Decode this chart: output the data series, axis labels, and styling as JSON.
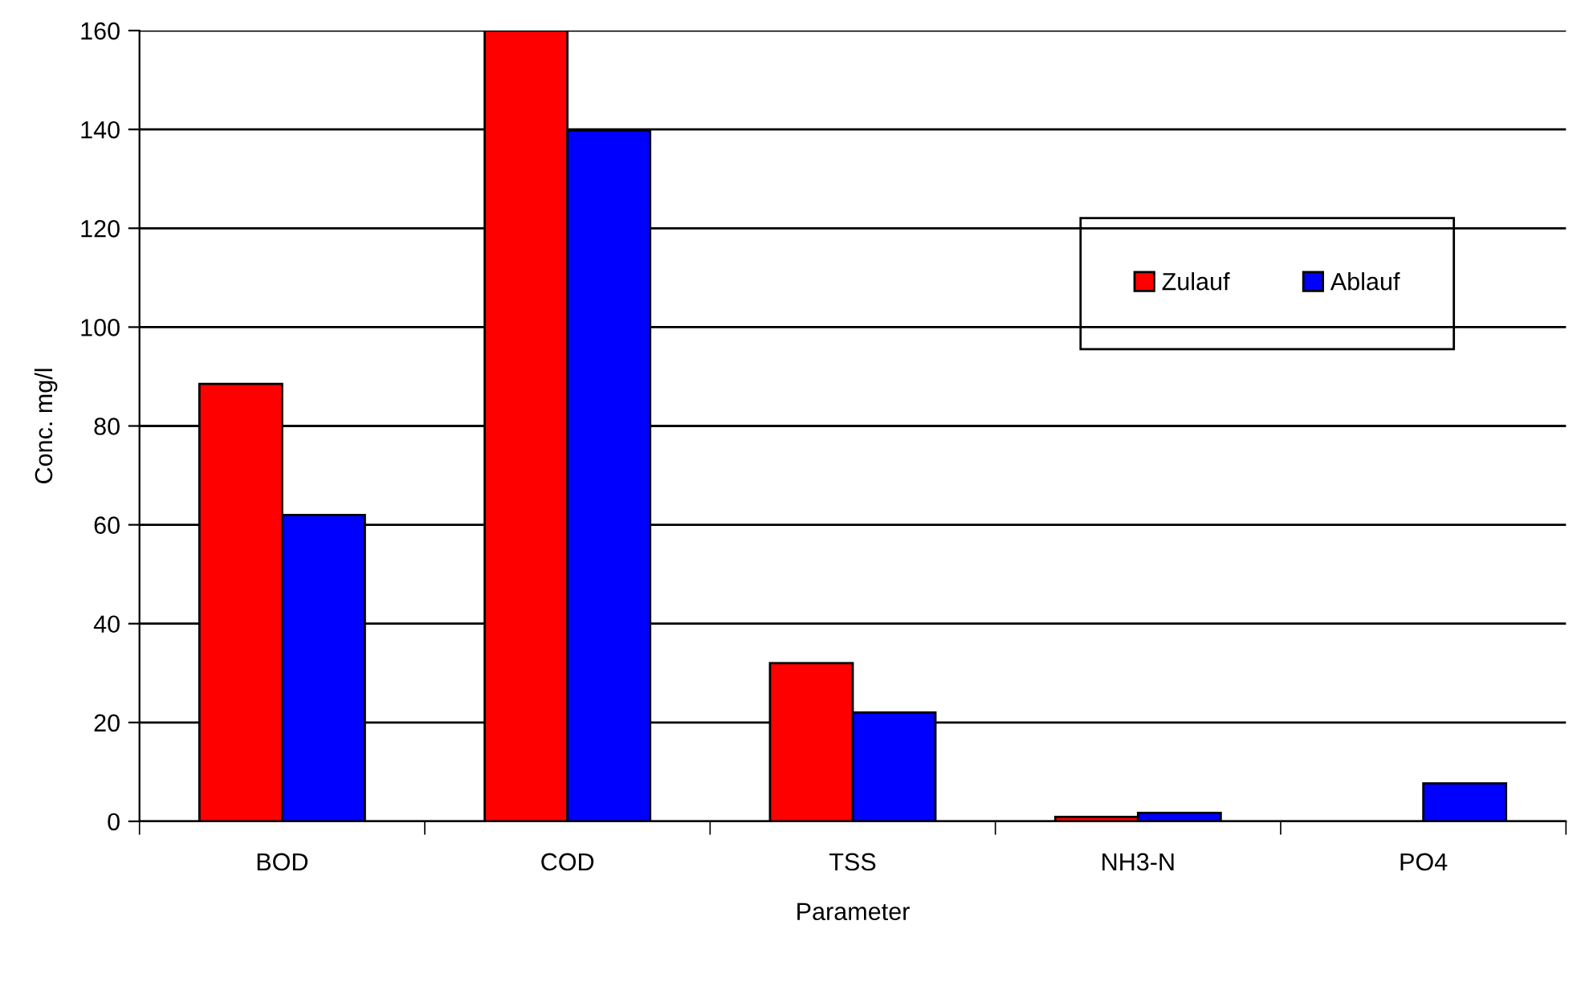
{
  "chart_data": {
    "type": "bar",
    "xlabel": "Parameter",
    "ylabel": "Conc. mg/l",
    "categories": [
      "BOD",
      "COD",
      "TSS",
      "NH3-N",
      "PO4"
    ],
    "series": [
      {
        "name": "Zulauf",
        "color": "#ff0000",
        "values": [
          88.5,
          160,
          32,
          0.9,
          null
        ]
      },
      {
        "name": "Ablauf",
        "color": "#0000ff",
        "values": [
          62,
          139.8,
          22,
          1.7,
          7.7
        ]
      }
    ],
    "ylim": [
      0,
      160
    ],
    "yticks": [
      0,
      20,
      40,
      60,
      80,
      100,
      120,
      140,
      160
    ],
    "grid": "y",
    "legend": "right"
  }
}
